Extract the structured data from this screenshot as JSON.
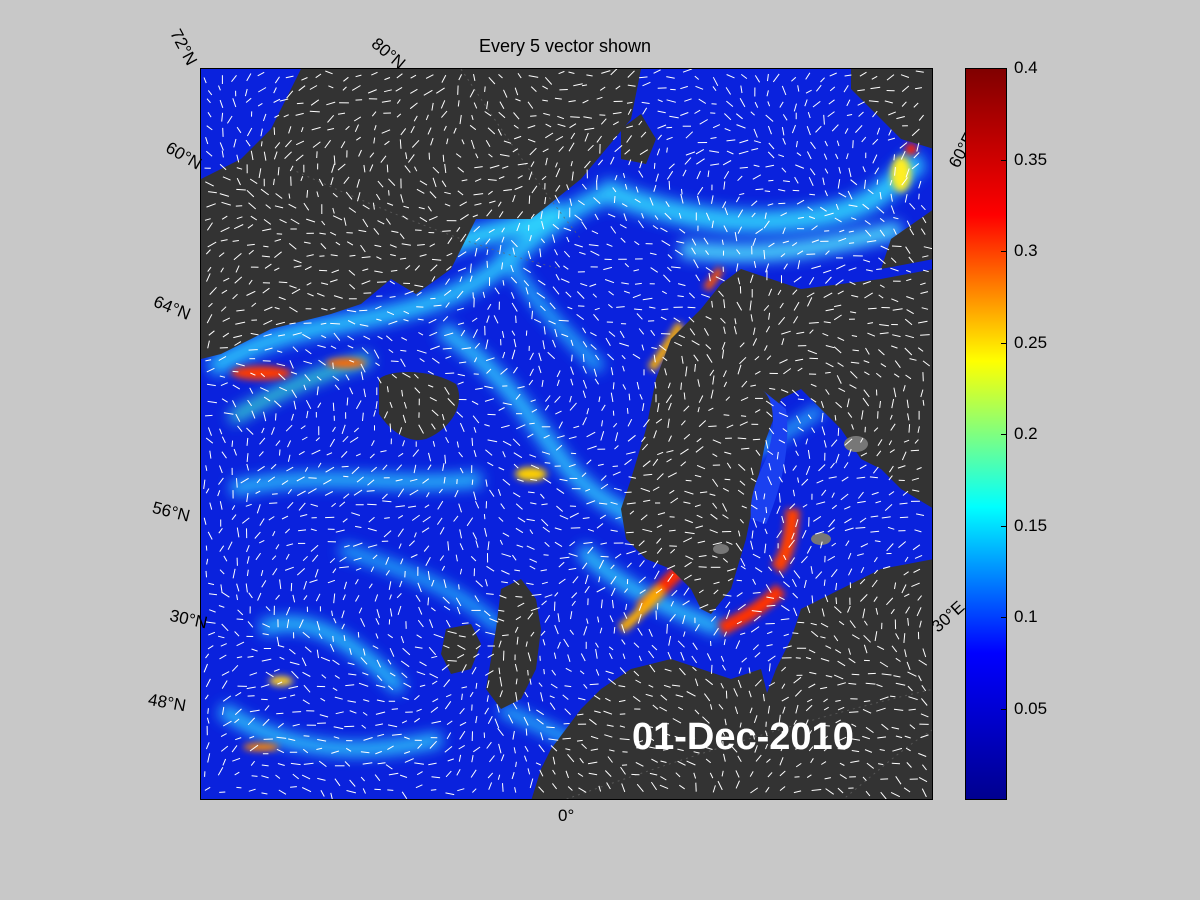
{
  "title": "Every 5 vector shown",
  "date": "01-Dec-2010",
  "lat_labels": [
    "72°N",
    "60°N",
    "64°N",
    "56°N",
    "30°N",
    "48°N"
  ],
  "lat_label_top": "80°N",
  "lon_labels": [
    "0°",
    "30°E",
    "60°E"
  ],
  "colorbar": {
    "ticks": [
      "0.4",
      "0.35",
      "0.3",
      "0.25",
      "0.2",
      "0.15",
      "0.1",
      "0.05"
    ],
    "range": [
      0,
      0.4
    ],
    "colormap": "jet",
    "colors": [
      "#00008f",
      "#0000ff",
      "#00ffff",
      "#ffff00",
      "#ff0000",
      "#800000"
    ]
  },
  "colors": {
    "ocean_low": "#0a1fd8",
    "land": "#333333",
    "background": "#c8c8c8",
    "vector": "#ffffff"
  }
}
